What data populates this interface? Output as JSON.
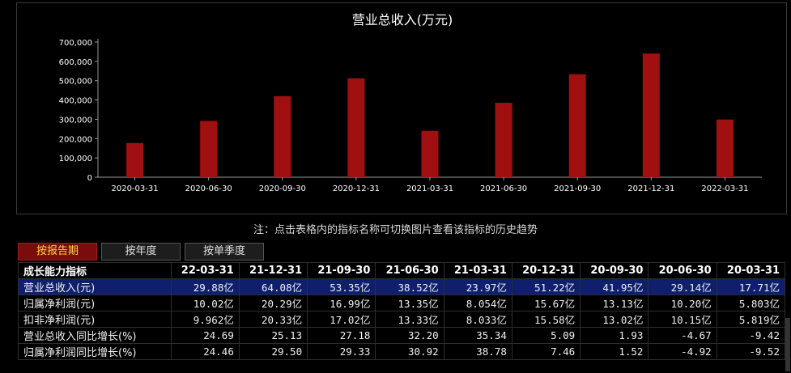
{
  "chart_data": {
    "type": "bar",
    "title": "营业总收入(万元)",
    "categories": [
      "2020-03-31",
      "2020-06-30",
      "2020-09-30",
      "2020-12-31",
      "2021-03-31",
      "2021-06-30",
      "2021-09-30",
      "2021-12-31",
      "2022-03-31"
    ],
    "values": [
      177100,
      291400,
      419500,
      512200,
      239700,
      385200,
      533500,
      640800,
      298800
    ],
    "y_ticks": [
      "0",
      "100,000",
      "200,000",
      "300,000",
      "400,000",
      "500,000",
      "600,000",
      "700,000"
    ],
    "ylim": [
      0,
      700000
    ],
    "bar_color": "#a01010",
    "axis_color": "#9a9a9a",
    "grid": false,
    "legend": "none"
  },
  "note": "注：点击表格内的指标名称可切换图片查看该指标的历史趋势",
  "tabs": [
    {
      "label": "按报告期",
      "active": true
    },
    {
      "label": "按年度",
      "active": false
    },
    {
      "label": "按单季度",
      "active": false
    }
  ],
  "table": {
    "header": [
      "成长能力指标",
      "22-03-31",
      "21-12-31",
      "21-09-30",
      "21-06-30",
      "21-03-31",
      "20-12-31",
      "20-09-30",
      "20-06-30",
      "20-03-31"
    ],
    "rows": [
      {
        "name": "营业总收入(元)",
        "values": [
          "29.88亿",
          "64.08亿",
          "53.35亿",
          "38.52亿",
          "23.97亿",
          "51.22亿",
          "41.95亿",
          "29.14亿",
          "17.71亿"
        ],
        "selected": true
      },
      {
        "name": "归属净利润(元)",
        "values": [
          "10.02亿",
          "20.29亿",
          "16.99亿",
          "13.35亿",
          "8.054亿",
          "15.67亿",
          "13.13亿",
          "10.20亿",
          "5.803亿"
        ]
      },
      {
        "name": "扣非净利润(元)",
        "values": [
          "9.962亿",
          "20.33亿",
          "17.02亿",
          "13.33亿",
          "8.033亿",
          "15.58亿",
          "13.02亿",
          "10.15亿",
          "5.819亿"
        ]
      },
      {
        "name": "营业总收入同比增长(%)",
        "values": [
          "24.69",
          "25.13",
          "27.18",
          "32.20",
          "35.34",
          "5.09",
          "1.93",
          "-4.67",
          "-9.42"
        ]
      },
      {
        "name": "归属净利润同比增长(%)",
        "values": [
          "24.46",
          "29.50",
          "29.33",
          "30.92",
          "38.78",
          "7.46",
          "1.52",
          "-4.92",
          "-9.52"
        ]
      }
    ]
  }
}
